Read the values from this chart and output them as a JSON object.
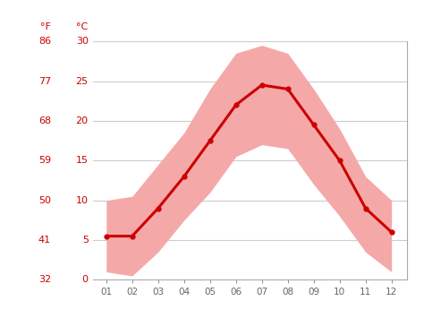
{
  "months": [
    1,
    2,
    3,
    4,
    5,
    6,
    7,
    8,
    9,
    10,
    11,
    12
  ],
  "month_labels": [
    "01",
    "02",
    "03",
    "04",
    "05",
    "06",
    "07",
    "08",
    "09",
    "10",
    "11",
    "12"
  ],
  "avg_temp": [
    5.5,
    5.5,
    9.0,
    13.0,
    17.5,
    22.0,
    24.5,
    24.0,
    19.5,
    15.0,
    9.0,
    6.0
  ],
  "temp_max": [
    10.0,
    10.5,
    14.5,
    18.5,
    24.0,
    28.5,
    29.5,
    28.5,
    24.0,
    19.0,
    13.0,
    10.0
  ],
  "temp_min": [
    1.0,
    0.5,
    3.5,
    7.5,
    11.0,
    15.5,
    17.0,
    16.5,
    12.0,
    8.0,
    3.5,
    1.0
  ],
  "ylim": [
    0,
    30
  ],
  "yticks_c": [
    0,
    5,
    10,
    15,
    20,
    25,
    30
  ],
  "yticks_f": [
    32,
    41,
    50,
    59,
    68,
    77,
    86
  ],
  "line_color": "#cc0000",
  "fill_color": "#f4a9a8",
  "bg_color": "#ffffff",
  "grid_color": "#cccccc",
  "spine_color": "#aaaaaa",
  "label_color_red": "#cc0000",
  "xtick_color": "#666666",
  "left_label_f": "°F",
  "left_label_c": "°C"
}
